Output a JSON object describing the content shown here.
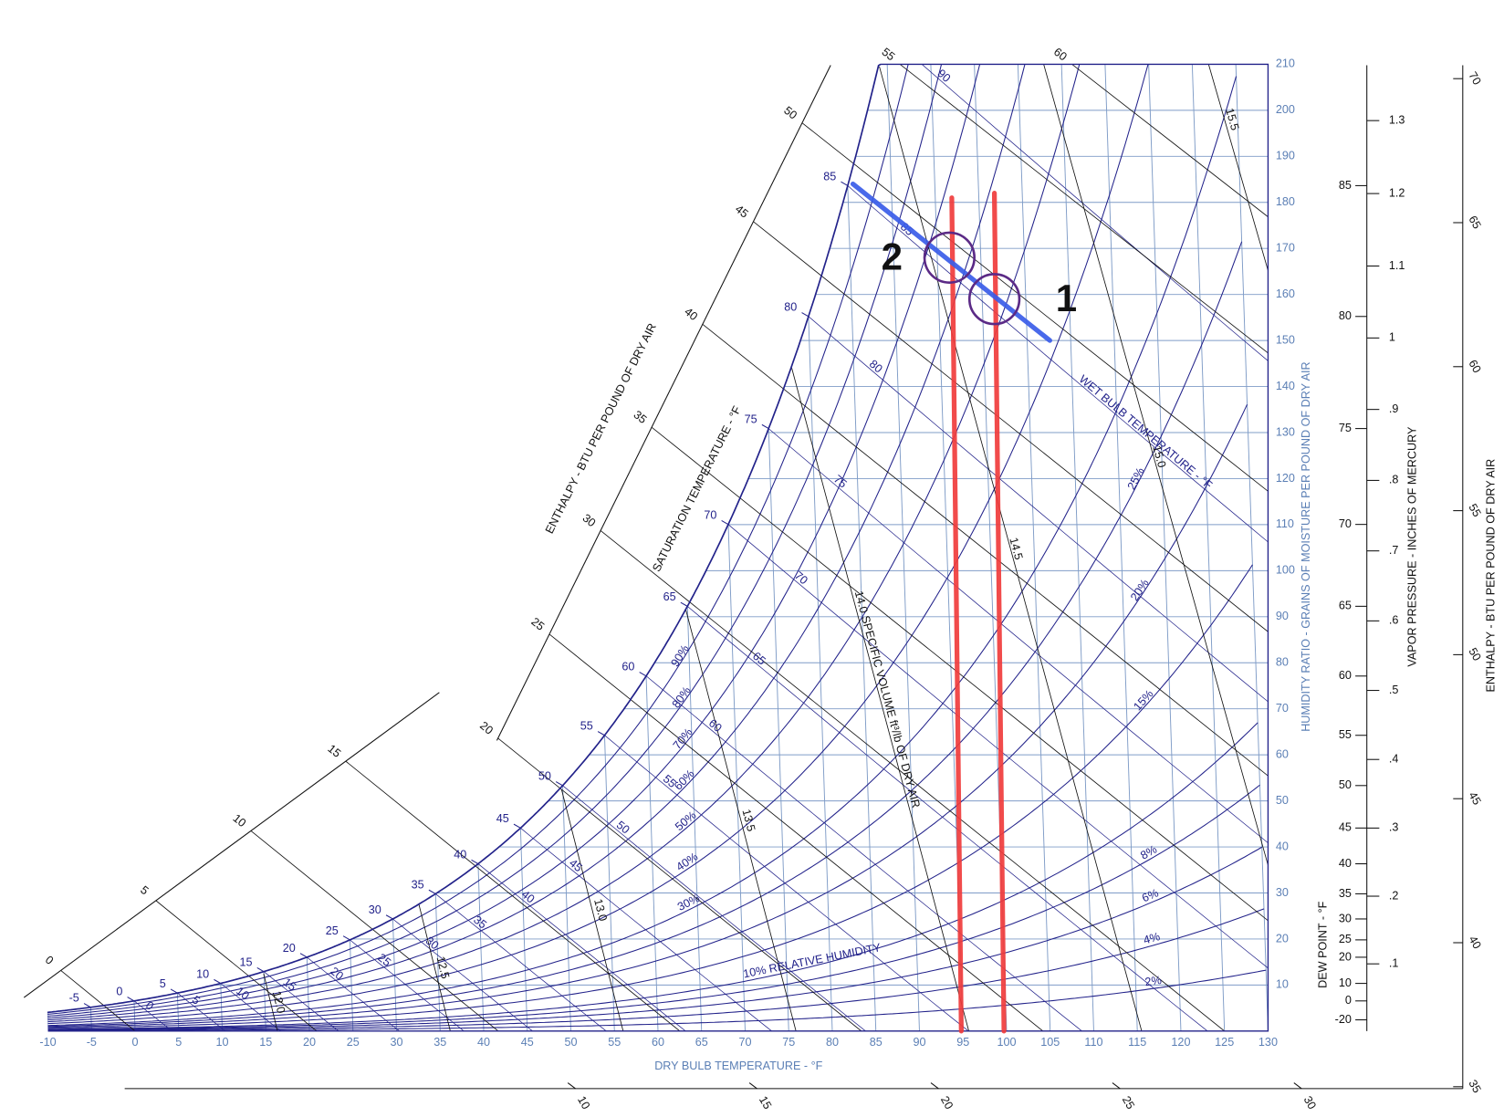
{
  "chart_data": {
    "type": "psychrometric",
    "xlabel": "DRY BULB TEMPERATURE - °F",
    "xlim": [
      -10,
      130
    ],
    "xticks": [
      -10,
      -5,
      0,
      5,
      10,
      15,
      20,
      25,
      30,
      35,
      40,
      45,
      50,
      55,
      60,
      65,
      70,
      75,
      80,
      85,
      90,
      95,
      100,
      105,
      110,
      115,
      120,
      125,
      130
    ],
    "y2label": "HUMIDITY RATIO - GRAINS OF MOISTURE PER POUND OF DRY AIR",
    "y2lim": [
      0,
      210
    ],
    "y2ticks": [
      10,
      20,
      30,
      40,
      50,
      60,
      70,
      80,
      90,
      100,
      110,
      120,
      130,
      140,
      150,
      160,
      170,
      180,
      190,
      200,
      210
    ],
    "saturation_label": "SATURATION TEMPERATURE - °F",
    "saturation_ticks": [
      -5,
      0,
      5,
      10,
      15,
      20,
      25,
      30,
      35,
      40,
      45,
      50,
      55,
      60,
      65,
      70,
      75,
      80,
      85
    ],
    "wet_bulb_label": "WET BULB TEMPERATURE - °F",
    "wet_bulb_lines": [
      0,
      5,
      10,
      15,
      20,
      25,
      30,
      35,
      40,
      45,
      50,
      55,
      60,
      65,
      70,
      75,
      80,
      85,
      90
    ],
    "rh_curves": [
      {
        "value": 2,
        "label": "2%"
      },
      {
        "value": 4,
        "label": "4%"
      },
      {
        "value": 6,
        "label": "6%"
      },
      {
        "value": 8,
        "label": "8%"
      },
      {
        "value": 10,
        "label": "10% RELATIVE HUMIDITY"
      },
      {
        "value": 15,
        "label": "15%"
      },
      {
        "value": 20,
        "label": "20%"
      },
      {
        "value": 25,
        "label": "25%"
      },
      {
        "value": 30,
        "label": "30%"
      },
      {
        "value": 40,
        "label": "40%"
      },
      {
        "value": 50,
        "label": "50%"
      },
      {
        "value": 60,
        "label": "60%"
      },
      {
        "value": 70,
        "label": "70%"
      },
      {
        "value": 80,
        "label": "80%"
      },
      {
        "value": 90,
        "label": "90%"
      }
    ],
    "specific_volume_lines": [
      {
        "value": 12,
        "label": "12.0"
      },
      12.5,
      {
        "value": 13,
        "label": "13.0"
      },
      13.5,
      {
        "value": 14,
        "label": "14.0 SPECIFIC VOLUME ft³/lb OF DRY AIR"
      },
      14.5,
      {
        "value": 15,
        "label": "15.0"
      },
      15.5
    ],
    "enthalpy_label": "ENTHALPY - BTU PER POUND OF DRY AIR",
    "enthalpy_ticks": [
      0,
      5,
      10,
      15,
      20,
      25,
      30,
      35,
      40,
      45,
      50,
      55,
      60
    ],
    "right_enthalpy_label": "ENTHALPY - BTU PER POUND OF DRY AIR",
    "right_enthalpy_ticks": [
      35,
      40,
      45,
      50,
      55,
      60,
      65,
      70
    ],
    "bottom_scale_ticks": [
      10,
      15,
      20,
      25,
      30
    ],
    "dew_point_label": "DEW POINT - °F",
    "dew_point_ticks": [
      -20,
      0,
      10,
      20,
      25,
      30,
      35,
      40,
      45,
      50,
      55,
      60,
      65,
      70,
      75,
      80,
      85
    ],
    "vapor_pressure_label": "VAPOR PRESSURE - INCHES OF MERCURY",
    "vapor_pressure_ticks": [
      {
        "value": 0.1,
        "label": ".1"
      },
      {
        "value": 0.2,
        "label": ".2"
      },
      {
        "value": 0.3,
        "label": ".3"
      },
      {
        "value": 0.4,
        "label": ".4"
      },
      {
        "value": 0.5,
        "label": ".5"
      },
      {
        "value": 0.6,
        "label": ".6"
      },
      {
        "value": 0.7,
        "label": ".7"
      },
      {
        "value": 0.8,
        "label": ".8"
      },
      {
        "value": 0.9,
        "label": ".9"
      },
      1,
      1.1,
      1.2,
      1.3
    ],
    "lines": [
      {
        "color": "#f03c3c",
        "x": [
          94.8,
          96.9
        ],
        "y": [
          0,
          181
        ]
      },
      {
        "color": "#f03c3c",
        "x": [
          99.7,
          101.8
        ],
        "y": [
          0,
          182
        ]
      },
      {
        "color": "#3a5ce8",
        "x": [
          85.6,
          107.6
        ],
        "y": [
          184,
          150
        ]
      }
    ],
    "points": [
      {
        "label": "1",
        "x": 101.4,
        "y": 159,
        "color": "#5b2a86"
      },
      {
        "label": "2",
        "x": 96.4,
        "y": 168,
        "color": "#5b2a86"
      }
    ]
  }
}
